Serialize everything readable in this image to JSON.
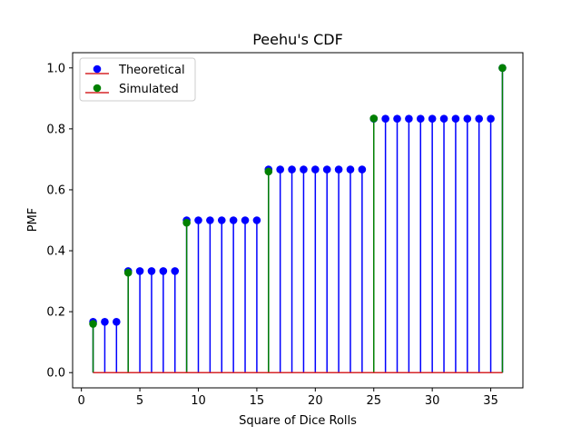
{
  "chart_data": {
    "type": "stem",
    "title": "Peehu's CDF",
    "xlabel": "Square of Dice Rolls",
    "ylabel": "PMF",
    "xlim": [
      -0.75,
      37.75
    ],
    "ylim": [
      -0.05,
      1.05
    ],
    "xticks": [
      0,
      5,
      10,
      15,
      20,
      25,
      30,
      35
    ],
    "yticks": [
      0.0,
      0.2,
      0.4,
      0.6,
      0.8,
      1.0
    ],
    "xtick_labels": [
      "0",
      "5",
      "10",
      "15",
      "20",
      "25",
      "30",
      "35"
    ],
    "ytick_labels": [
      "0.0",
      "0.2",
      "0.4",
      "0.6",
      "0.8",
      "1.0"
    ],
    "grid": false,
    "legend_position": "top-left",
    "baseline_color": "#d62728",
    "series": [
      {
        "name": "Theoretical",
        "color": "#0000ff",
        "x": [
          1,
          2,
          3,
          4,
          5,
          6,
          7,
          8,
          9,
          10,
          11,
          12,
          13,
          14,
          15,
          16,
          17,
          18,
          19,
          20,
          21,
          22,
          23,
          24,
          25,
          26,
          27,
          28,
          29,
          30,
          31,
          32,
          33,
          34,
          35,
          36
        ],
        "y": [
          0.1667,
          0.1667,
          0.1667,
          0.3333,
          0.3333,
          0.3333,
          0.3333,
          0.3333,
          0.5,
          0.5,
          0.5,
          0.5,
          0.5,
          0.5,
          0.5,
          0.6667,
          0.6667,
          0.6667,
          0.6667,
          0.6667,
          0.6667,
          0.6667,
          0.6667,
          0.6667,
          0.8333,
          0.8333,
          0.8333,
          0.8333,
          0.8333,
          0.8333,
          0.8333,
          0.8333,
          0.8333,
          0.8333,
          0.8333,
          1.0
        ]
      },
      {
        "name": "Simulated",
        "color": "#008000",
        "x": [
          1,
          4,
          9,
          16,
          25,
          36
        ],
        "y": [
          0.16,
          0.328,
          0.492,
          0.66,
          0.834,
          1.0
        ]
      }
    ]
  }
}
